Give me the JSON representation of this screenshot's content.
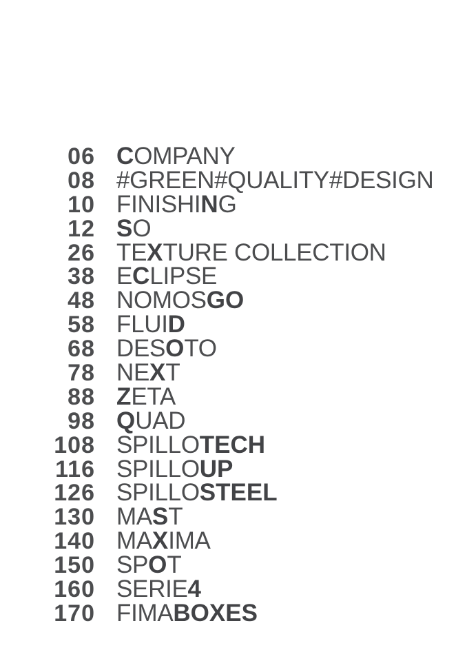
{
  "page": {
    "background": "#ffffff",
    "text_color": "#4c4d4f",
    "bold_text_color": "#424346"
  },
  "toc": {
    "rows": [
      {
        "page_number": "06",
        "segments": [
          {
            "text": "C",
            "bold": true
          },
          {
            "text": "OMPANY",
            "bold": false
          }
        ]
      },
      {
        "page_number": "08",
        "segments": [
          {
            "text": "#GREEN#QUALITY#DESIGN",
            "bold": false
          }
        ]
      },
      {
        "page_number": "10",
        "segments": [
          {
            "text": "FINISHI",
            "bold": false
          },
          {
            "text": "N",
            "bold": true
          },
          {
            "text": "G",
            "bold": false
          }
        ]
      },
      {
        "page_number": "12",
        "segments": [
          {
            "text": "S",
            "bold": true
          },
          {
            "text": "O",
            "bold": false
          }
        ]
      },
      {
        "page_number": "26",
        "segments": [
          {
            "text": "TE",
            "bold": false
          },
          {
            "text": "X",
            "bold": true
          },
          {
            "text": "TURE COLLECTION",
            "bold": false
          }
        ]
      },
      {
        "page_number": "38",
        "segments": [
          {
            "text": "E",
            "bold": false
          },
          {
            "text": "C",
            "bold": true
          },
          {
            "text": "LIPSE",
            "bold": false
          }
        ]
      },
      {
        "page_number": "48",
        "segments": [
          {
            "text": "NOMOS",
            "bold": false
          },
          {
            "text": "GO",
            "bold": true
          }
        ]
      },
      {
        "page_number": "58",
        "segments": [
          {
            "text": "FLUI",
            "bold": false
          },
          {
            "text": "D",
            "bold": true
          }
        ]
      },
      {
        "page_number": "68",
        "segments": [
          {
            "text": "DES",
            "bold": false
          },
          {
            "text": "O",
            "bold": true
          },
          {
            "text": "TO",
            "bold": false
          }
        ]
      },
      {
        "page_number": "78",
        "segments": [
          {
            "text": "NE",
            "bold": false
          },
          {
            "text": "X",
            "bold": true
          },
          {
            "text": "T",
            "bold": false
          }
        ]
      },
      {
        "page_number": "88",
        "segments": [
          {
            "text": "Z",
            "bold": true
          },
          {
            "text": "ETA",
            "bold": false
          }
        ]
      },
      {
        "page_number": "98",
        "segments": [
          {
            "text": "Q",
            "bold": true
          },
          {
            "text": "UAD",
            "bold": false
          }
        ]
      },
      {
        "page_number": "108",
        "segments": [
          {
            "text": "SPILLO",
            "bold": false
          },
          {
            "text": "TECH",
            "bold": true
          }
        ]
      },
      {
        "page_number": "116",
        "segments": [
          {
            "text": "SPILLO",
            "bold": false
          },
          {
            "text": "UP",
            "bold": true
          }
        ]
      },
      {
        "page_number": "126",
        "segments": [
          {
            "text": "SPILLO",
            "bold": false
          },
          {
            "text": "STEEL",
            "bold": true
          }
        ]
      },
      {
        "page_number": "130",
        "segments": [
          {
            "text": "MA",
            "bold": false
          },
          {
            "text": "S",
            "bold": true
          },
          {
            "text": "T",
            "bold": false
          }
        ]
      },
      {
        "page_number": "140",
        "segments": [
          {
            "text": "MA",
            "bold": false
          },
          {
            "text": "X",
            "bold": true
          },
          {
            "text": "IMA",
            "bold": false
          }
        ]
      },
      {
        "page_number": "150",
        "segments": [
          {
            "text": "SP",
            "bold": false
          },
          {
            "text": "O",
            "bold": true
          },
          {
            "text": "T",
            "bold": false
          }
        ]
      },
      {
        "page_number": "160",
        "segments": [
          {
            "text": "SERIE",
            "bold": false
          },
          {
            "text": "4",
            "bold": true
          }
        ]
      },
      {
        "page_number": "170",
        "segments": [
          {
            "text": "FIMA",
            "bold": false
          },
          {
            "text": "BOXES",
            "bold": true
          }
        ]
      }
    ]
  }
}
